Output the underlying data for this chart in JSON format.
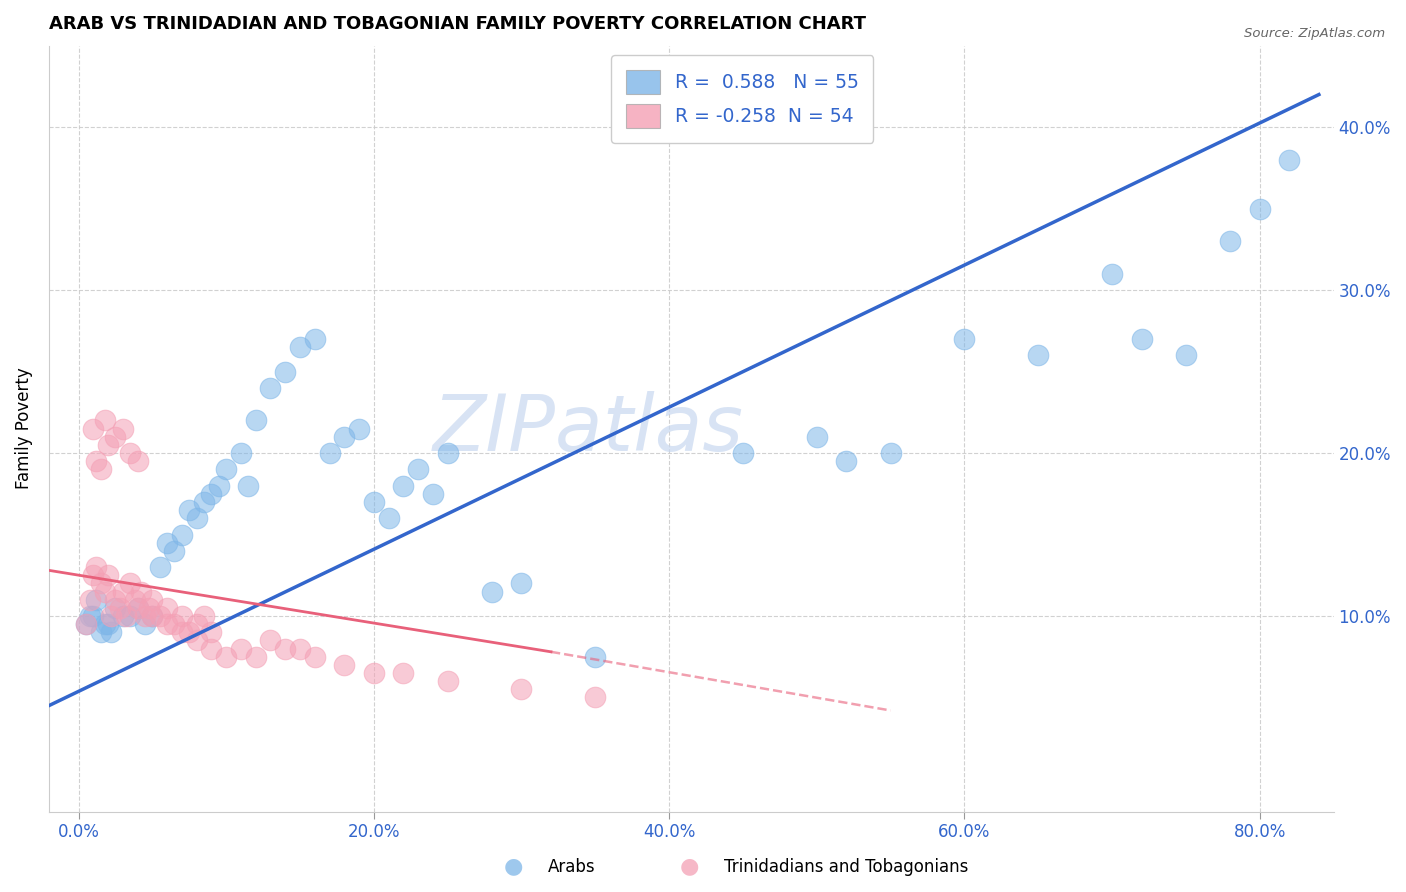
{
  "title": "ARAB VS TRINIDADIAN AND TOBAGONIAN FAMILY POVERTY CORRELATION CHART",
  "source": "Source: ZipAtlas.com",
  "xlabel_ticks": [
    "0.0%",
    "20.0%",
    "40.0%",
    "60.0%",
    "80.0%"
  ],
  "ylabel_ticks": [
    "10.0%",
    "20.0%",
    "30.0%",
    "40.0%"
  ],
  "xlabel_tick_vals": [
    0.0,
    0.2,
    0.4,
    0.6,
    0.8
  ],
  "ylabel_tick_vals": [
    0.1,
    0.2,
    0.3,
    0.4
  ],
  "xlim": [
    -0.02,
    0.85
  ],
  "ylim": [
    -0.02,
    0.45
  ],
  "ylabel": "Family Poverty",
  "legend_labels": [
    "Arabs",
    "Trinidadians and Tobagonians"
  ],
  "arab_color": "#7EB6E8",
  "tnt_color": "#F4A0B5",
  "arab_R": 0.588,
  "arab_N": 55,
  "tnt_R": -0.258,
  "tnt_N": 54,
  "arab_line_color": "#3366CC",
  "tnt_line_color": "#E8607A",
  "watermark": "ZIPatlas",
  "background_color": "#ffffff",
  "grid_color": "#cccccc",
  "arab_x": [
    0.005,
    0.01,
    0.015,
    0.02,
    0.025,
    0.008,
    0.012,
    0.018,
    0.022,
    0.03,
    0.035,
    0.04,
    0.045,
    0.05,
    0.055,
    0.06,
    0.065,
    0.07,
    0.075,
    0.08,
    0.085,
    0.09,
    0.095,
    0.1,
    0.11,
    0.115,
    0.12,
    0.13,
    0.14,
    0.15,
    0.16,
    0.17,
    0.18,
    0.19,
    0.2,
    0.21,
    0.22,
    0.23,
    0.24,
    0.25,
    0.28,
    0.3,
    0.35,
    0.45,
    0.5,
    0.52,
    0.55,
    0.6,
    0.65,
    0.7,
    0.72,
    0.75,
    0.78,
    0.8,
    0.82
  ],
  "arab_y": [
    0.095,
    0.1,
    0.09,
    0.095,
    0.105,
    0.1,
    0.11,
    0.095,
    0.09,
    0.1,
    0.1,
    0.105,
    0.095,
    0.1,
    0.13,
    0.145,
    0.14,
    0.15,
    0.165,
    0.16,
    0.17,
    0.175,
    0.18,
    0.19,
    0.2,
    0.18,
    0.22,
    0.24,
    0.25,
    0.265,
    0.27,
    0.2,
    0.21,
    0.215,
    0.17,
    0.16,
    0.18,
    0.19,
    0.175,
    0.2,
    0.115,
    0.12,
    0.075,
    0.2,
    0.21,
    0.195,
    0.2,
    0.27,
    0.26,
    0.31,
    0.27,
    0.26,
    0.33,
    0.35,
    0.38
  ],
  "tnt_x": [
    0.005,
    0.008,
    0.01,
    0.012,
    0.015,
    0.018,
    0.02,
    0.022,
    0.025,
    0.028,
    0.03,
    0.032,
    0.035,
    0.038,
    0.04,
    0.042,
    0.045,
    0.048,
    0.05,
    0.055,
    0.06,
    0.065,
    0.07,
    0.075,
    0.08,
    0.085,
    0.09,
    0.01,
    0.012,
    0.015,
    0.018,
    0.02,
    0.025,
    0.03,
    0.035,
    0.04,
    0.05,
    0.06,
    0.07,
    0.08,
    0.09,
    0.1,
    0.11,
    0.12,
    0.13,
    0.14,
    0.15,
    0.16,
    0.18,
    0.2,
    0.22,
    0.25,
    0.3,
    0.35
  ],
  "tnt_y": [
    0.095,
    0.11,
    0.125,
    0.13,
    0.12,
    0.115,
    0.125,
    0.1,
    0.11,
    0.105,
    0.115,
    0.1,
    0.12,
    0.11,
    0.105,
    0.115,
    0.1,
    0.105,
    0.11,
    0.1,
    0.105,
    0.095,
    0.1,
    0.09,
    0.095,
    0.1,
    0.09,
    0.215,
    0.195,
    0.19,
    0.22,
    0.205,
    0.21,
    0.215,
    0.2,
    0.195,
    0.1,
    0.095,
    0.09,
    0.085,
    0.08,
    0.075,
    0.08,
    0.075,
    0.085,
    0.08,
    0.08,
    0.075,
    0.07,
    0.065,
    0.065,
    0.06,
    0.055,
    0.05
  ]
}
